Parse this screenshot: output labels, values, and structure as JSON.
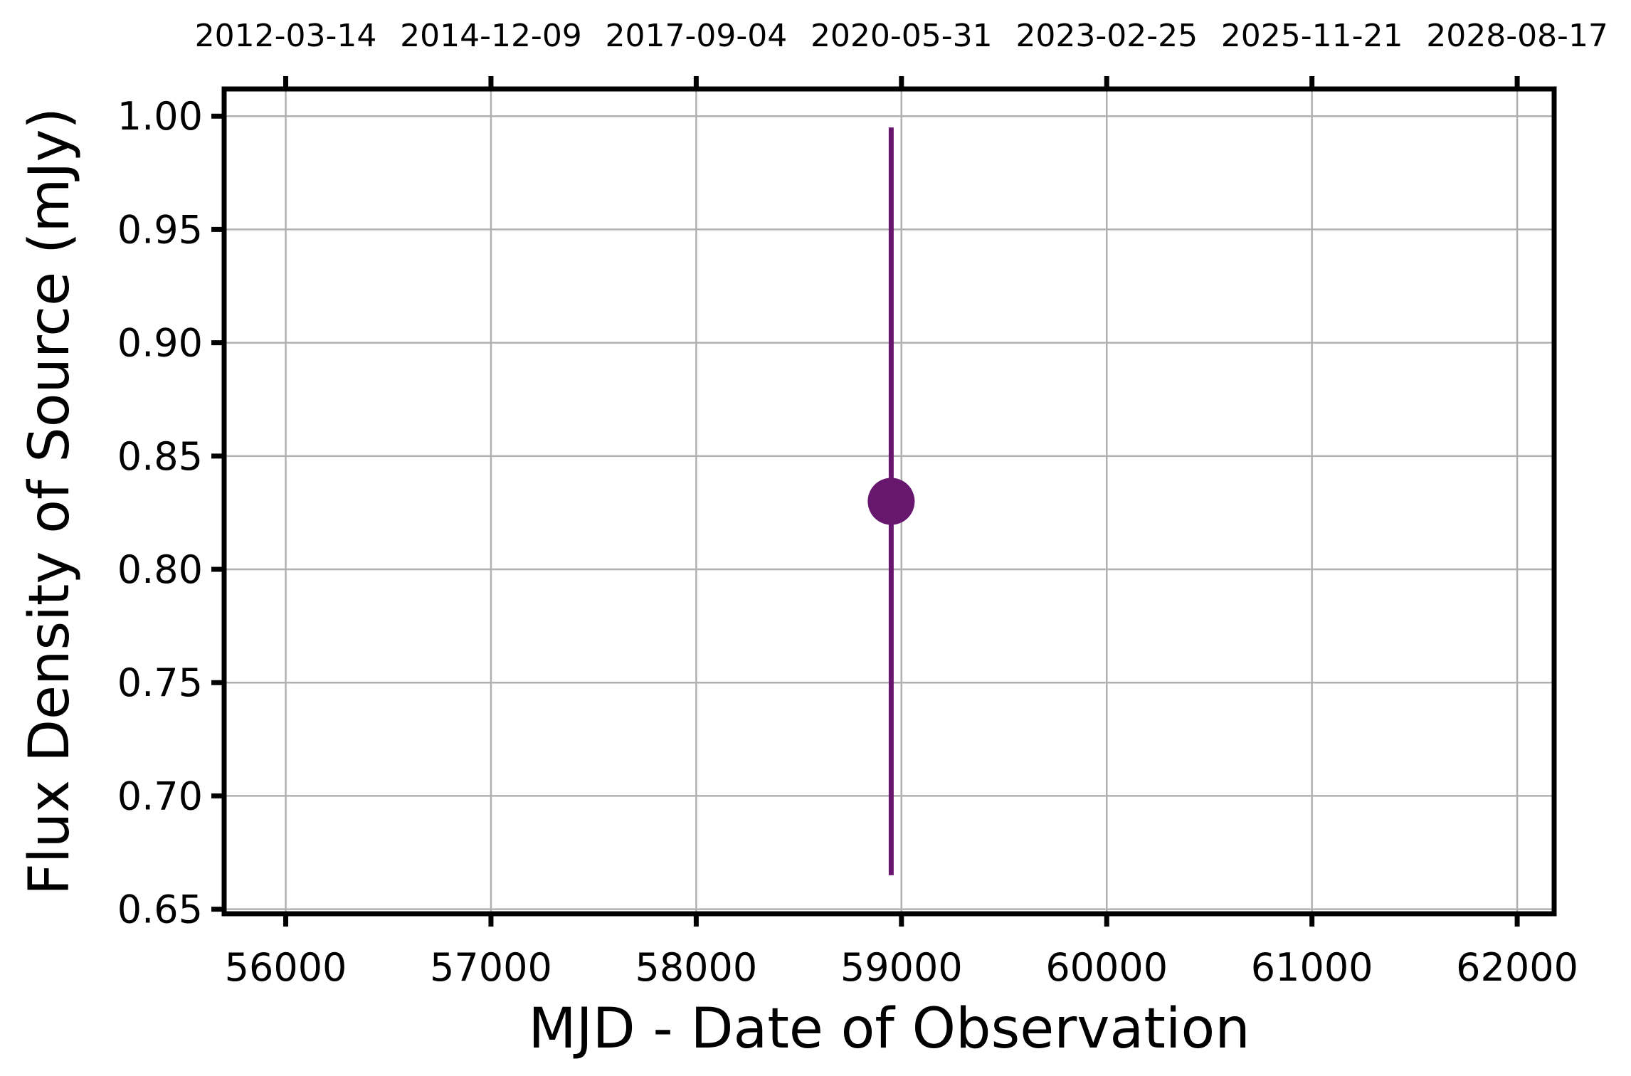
{
  "chart_data": {
    "type": "scatter",
    "xlabel": "MJD - Date of Observation",
    "ylabel": "Flux Density of Source (mJy)",
    "xlim": [
      55700,
      62180
    ],
    "ylim": [
      0.648,
      1.012
    ],
    "x_ticks": [
      56000,
      57000,
      58000,
      59000,
      60000,
      61000,
      62000
    ],
    "x_tick_labels": [
      "56000",
      "57000",
      "58000",
      "59000",
      "60000",
      "61000",
      "62000"
    ],
    "y_ticks": [
      0.65,
      0.7,
      0.75,
      0.8,
      0.85,
      0.9,
      0.95,
      1.0
    ],
    "y_tick_labels": [
      "0.65",
      "0.70",
      "0.75",
      "0.80",
      "0.85",
      "0.90",
      "0.95",
      "1.00"
    ],
    "top_axis_tick_labels": [
      "2012-03-14",
      "2014-12-09",
      "2017-09-04",
      "2020-05-31",
      "2023-02-25",
      "2025-11-21",
      "2028-08-17"
    ],
    "grid": true,
    "series": [
      {
        "x": [
          58950
        ],
        "y": [
          0.83
        ],
        "yerr_low": [
          0.665
        ],
        "yerr_high": [
          0.995
        ],
        "color": "#68176f"
      }
    ]
  }
}
